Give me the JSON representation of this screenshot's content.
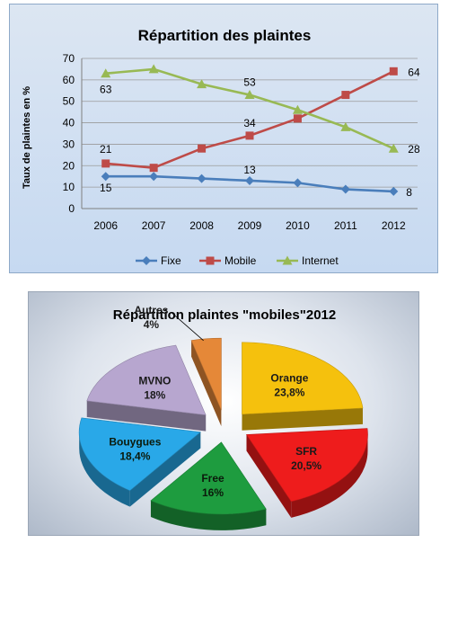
{
  "chart_data": [
    {
      "type": "line",
      "title": "Répartition des plaintes",
      "xlabel": "",
      "ylabel": "Taux de plaintes en %",
      "categories": [
        "2006",
        "2007",
        "2008",
        "2009",
        "2010",
        "2011",
        "2012"
      ],
      "ylim": [
        0,
        70
      ],
      "yticks": [
        "0",
        "10",
        "20",
        "30",
        "40",
        "50",
        "60",
        "70"
      ],
      "grid": true,
      "legend_position": "bottom",
      "series": [
        {
          "name": "Fixe",
          "color": "#4a7ebb",
          "marker": "diamond",
          "values": [
            15,
            15,
            14,
            13,
            12,
            9,
            8
          ],
          "labels": [
            "15",
            null,
            null,
            "13",
            null,
            null,
            "8"
          ]
        },
        {
          "name": "Mobile",
          "color": "#be4b48",
          "marker": "square",
          "values": [
            21,
            19,
            28,
            34,
            42,
            53,
            64
          ],
          "labels": [
            "21",
            null,
            null,
            "34",
            null,
            null,
            "64"
          ]
        },
        {
          "name": "Internet",
          "color": "#98b954",
          "marker": "triangle",
          "values": [
            63,
            65,
            58,
            53,
            46,
            38,
            28
          ],
          "labels": [
            "63",
            null,
            null,
            "53",
            null,
            null,
            "28"
          ]
        }
      ]
    },
    {
      "type": "pie",
      "title": "Répartition plaintes \"mobiles\"2012",
      "exploded": true,
      "three_d": true,
      "slices": [
        {
          "name": "Orange",
          "label": "23,8%",
          "value": 23.8,
          "color": "#f5c10d"
        },
        {
          "name": "SFR",
          "label": "20,5%",
          "value": 20.5,
          "color": "#ee1c1c"
        },
        {
          "name": "Free",
          "label": "16%",
          "value": 16,
          "color": "#1e9c3f"
        },
        {
          "name": "Bouygues",
          "label": "18,4%",
          "value": 18.4,
          "color": "#29a8e8"
        },
        {
          "name": "MVNO",
          "label": "18%",
          "value": 18,
          "color": "#b7a6cf"
        },
        {
          "name": "Autres",
          "label": "4%",
          "value": 4,
          "color": "#e58838"
        }
      ]
    }
  ]
}
